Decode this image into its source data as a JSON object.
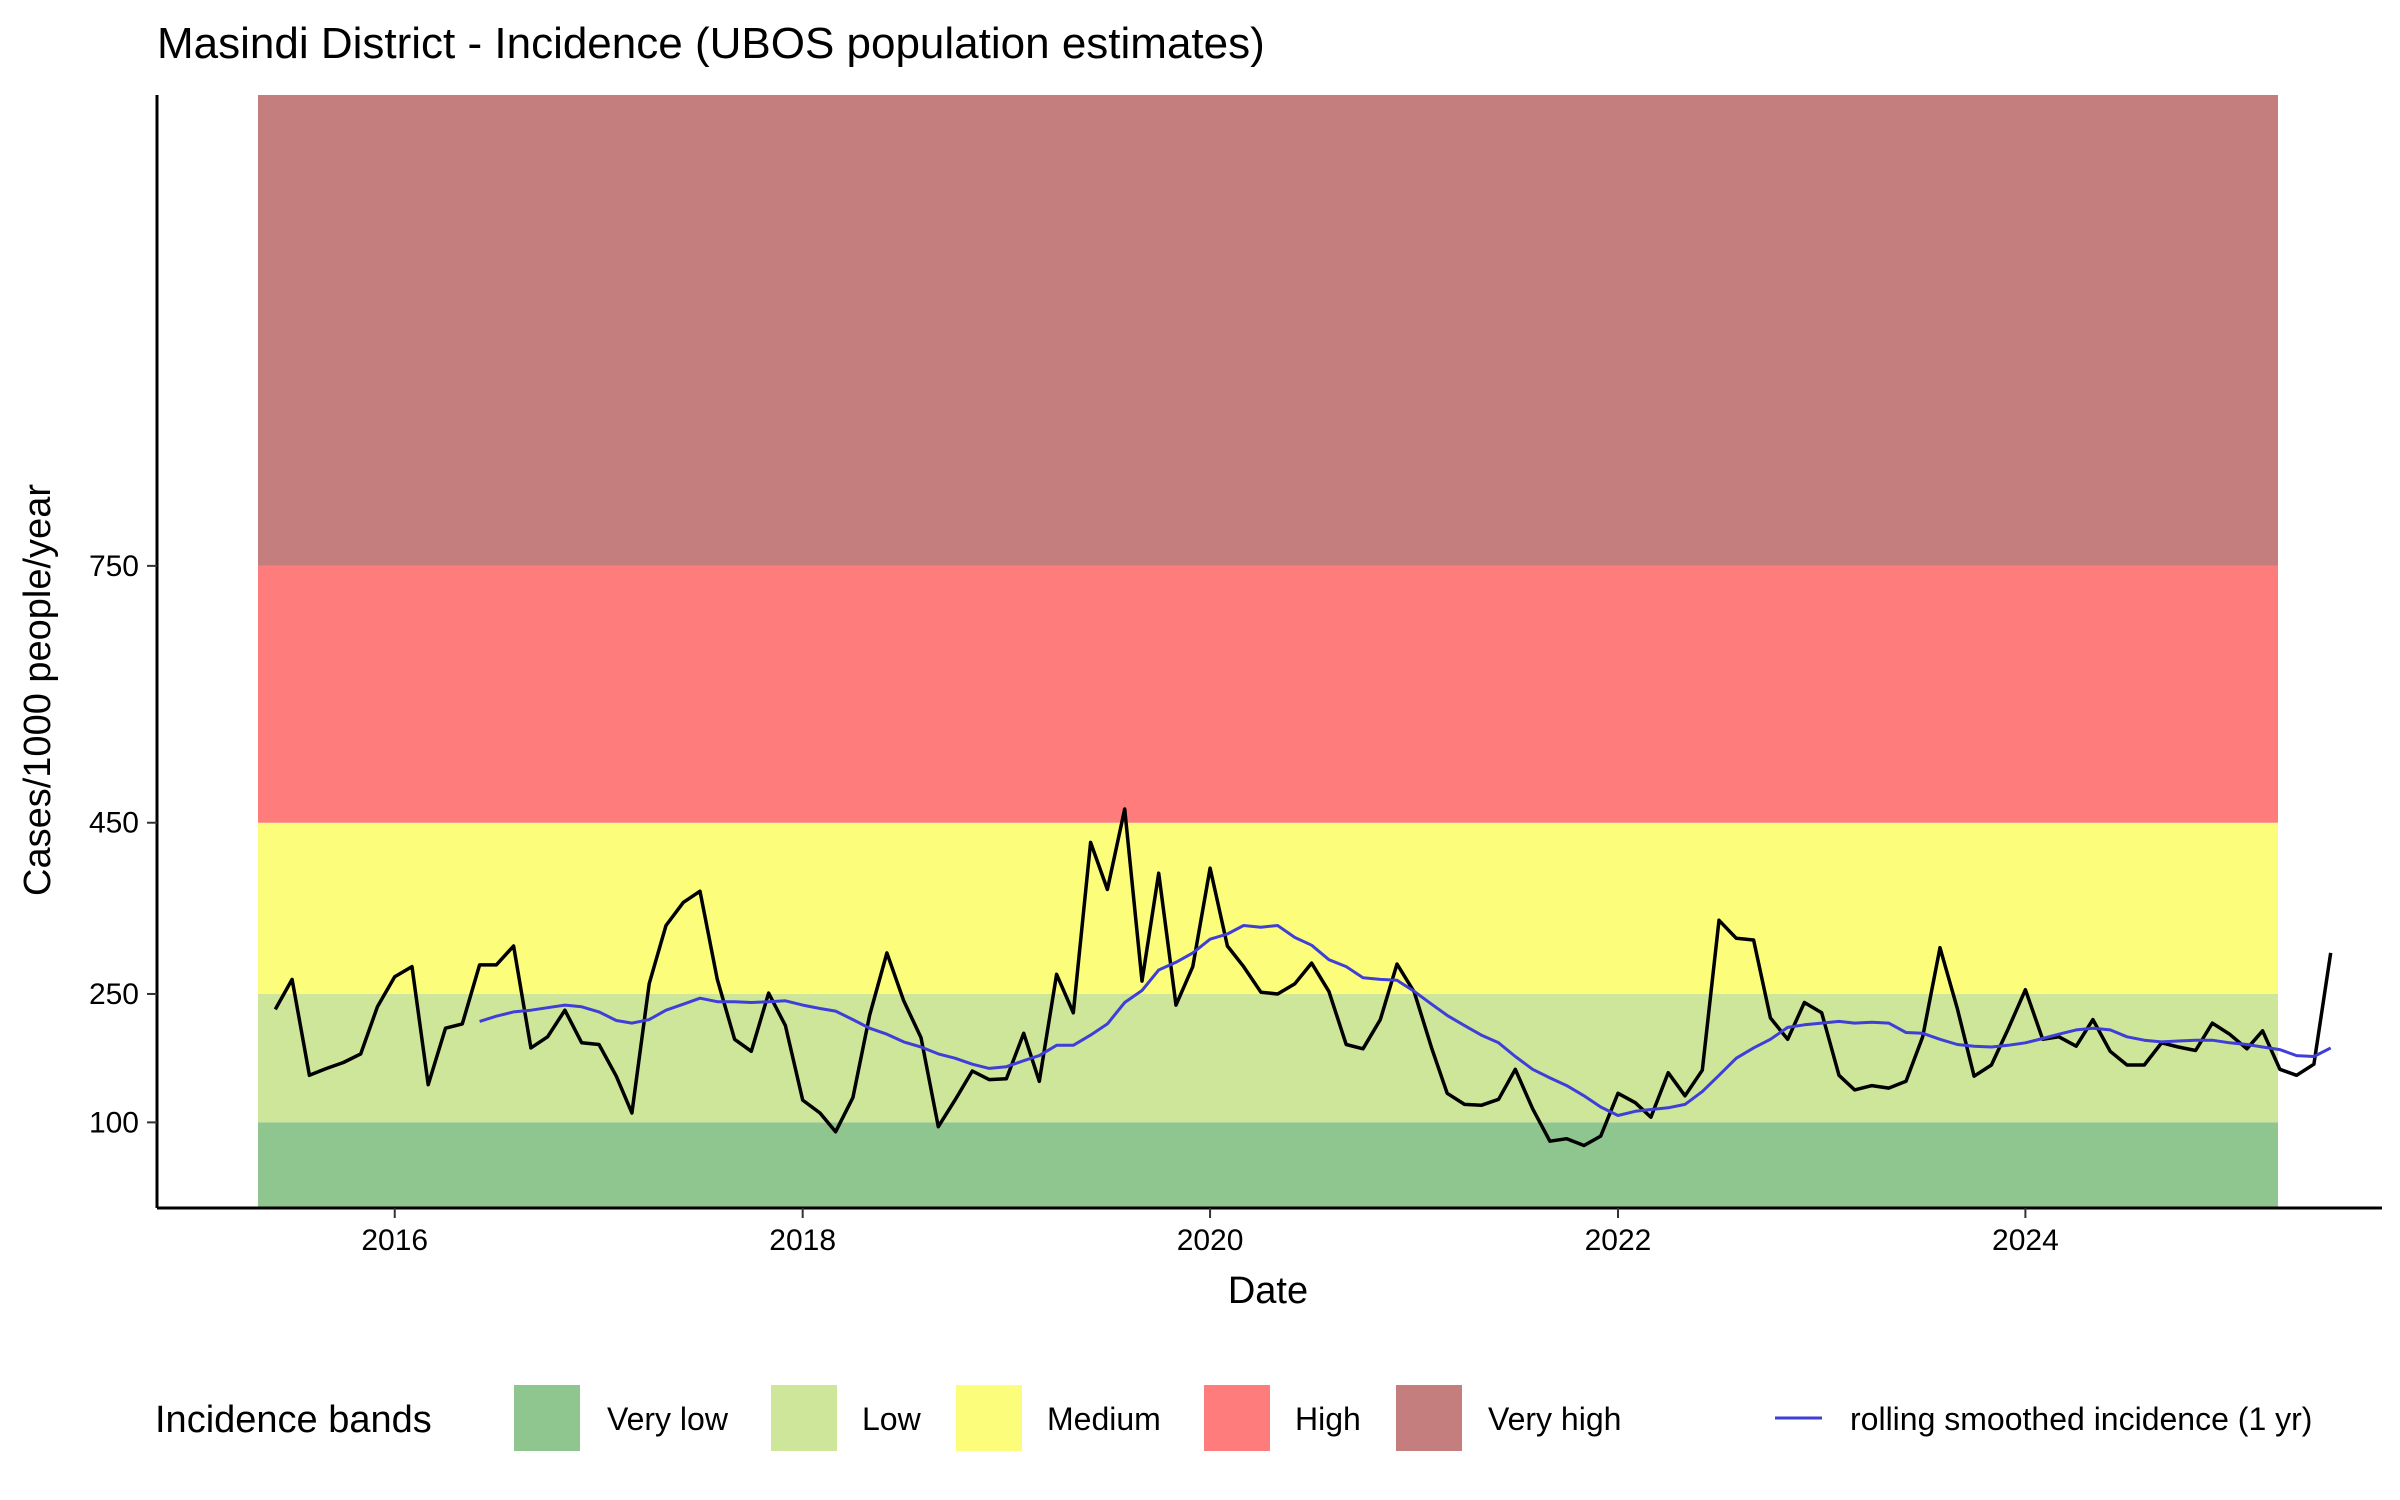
{
  "chart_data": {
    "type": "line",
    "title": "Masindi District - Incidence (UBOS population estimates)",
    "xlabel": "Date",
    "ylabel": "Cases/1000 people/year",
    "x_ticks": [
      "2016",
      "2018",
      "2020",
      "2022",
      "2024"
    ],
    "x_range": [
      "2014-11-01",
      "2025-10-01"
    ],
    "y_ticks": [
      100,
      250,
      450,
      750
    ],
    "y_range": [
      0,
      1300
    ],
    "grid": false,
    "legend_position": "bottom",
    "bands_title": "Incidence bands",
    "bands": [
      {
        "name": "Very low",
        "from": 0,
        "to": 100,
        "color": "#8fc58f"
      },
      {
        "name": "Low",
        "from": 100,
        "to": 250,
        "color": "#cde69a"
      },
      {
        "name": "Medium",
        "from": 250,
        "to": 450,
        "color": "#fdfd7c"
      },
      {
        "name": "High",
        "from": 450,
        "to": 750,
        "color": "#ff7c7c"
      },
      {
        "name": "Very high",
        "from": 750,
        "to": 1300,
        "color": "#c47e7e"
      }
    ],
    "series": [
      {
        "color": "#000000",
        "points": [
          [
            "2015-06-01",
            232
          ],
          [
            "2015-07-01",
            267
          ],
          [
            "2015-08-01",
            155
          ],
          [
            "2015-09-01",
            163
          ],
          [
            "2015-10-01",
            170
          ],
          [
            "2015-11-01",
            180
          ],
          [
            "2015-12-01",
            235
          ],
          [
            "2016-01-01",
            270
          ],
          [
            "2016-02-01",
            282
          ],
          [
            "2016-03-01",
            144
          ],
          [
            "2016-04-01",
            210
          ],
          [
            "2016-05-01",
            215
          ],
          [
            "2016-06-01",
            284
          ],
          [
            "2016-07-01",
            284
          ],
          [
            "2016-08-01",
            306
          ],
          [
            "2016-09-01",
            187
          ],
          [
            "2016-10-01",
            200
          ],
          [
            "2016-11-01",
            231
          ],
          [
            "2016-12-01",
            193
          ],
          [
            "2016-13-01",
            191
          ],
          [
            "2017-02-01",
            154
          ],
          [
            "2017-03-01",
            111
          ],
          [
            "2017-04-01",
            262
          ],
          [
            "2017-05-01",
            330
          ],
          [
            "2017-06-01",
            357
          ],
          [
            "2017-07-01",
            370
          ],
          [
            "2017-08-01",
            267
          ],
          [
            "2017-09-01",
            197
          ],
          [
            "2017-10-01",
            183
          ],
          [
            "2017-11-01",
            251
          ],
          [
            "2017-12-01",
            213
          ],
          [
            "2018-01-01",
            126
          ],
          [
            "2018-02-01",
            111
          ],
          [
            "2018-03-01",
            89
          ],
          [
            "2018-04-01",
            129
          ],
          [
            "2018-05-01",
            225
          ],
          [
            "2018-06-01",
            298
          ],
          [
            "2018-07-01",
            242
          ],
          [
            "2018-08-01",
            199
          ],
          [
            "2018-09-01",
            95
          ],
          [
            "2018-10-01",
            126
          ],
          [
            "2018-11-01",
            160
          ],
          [
            "2018-12-01",
            150
          ],
          [
            "2019-01-01",
            151
          ],
          [
            "2019-02-01",
            204
          ],
          [
            "2019-03-01",
            148
          ],
          [
            "2019-04-01",
            273
          ],
          [
            "2019-05-01",
            228
          ],
          [
            "2019-06-01",
            427
          ],
          [
            "2019-07-01",
            372
          ],
          [
            "2019-08-01",
            466
          ],
          [
            "2019-09-01",
            265
          ],
          [
            "2019-10-01",
            391
          ],
          [
            "2019-11-01",
            237
          ],
          [
            "2019-12-01",
            282
          ],
          [
            "2020-01-01",
            397
          ],
          [
            "2020-02-01",
            306
          ],
          [
            "2020-03-01",
            282
          ],
          [
            "2020-04-01",
            252
          ],
          [
            "2020-05-01",
            250
          ],
          [
            "2020-06-01",
            262
          ],
          [
            "2020-07-01",
            286
          ],
          [
            "2020-08-01",
            253
          ],
          [
            "2020-09-01",
            191
          ],
          [
            "2020-10-01",
            186
          ],
          [
            "2020-11-01",
            220
          ],
          [
            "2020-12-01",
            285
          ],
          [
            "2021-01-01",
            252
          ],
          [
            "2021-02-01",
            187
          ],
          [
            "2021-03-01",
            134
          ],
          [
            "2021-04-01",
            121
          ],
          [
            "2021-05-01",
            120
          ],
          [
            "2021-06-01",
            127
          ],
          [
            "2021-07-01",
            162
          ],
          [
            "2021-08-01",
            116
          ],
          [
            "2021-09-01",
            78
          ],
          [
            "2021-10-01",
            81
          ],
          [
            "2021-11-01",
            73
          ],
          [
            "2021-12-01",
            84
          ],
          [
            "2022-01-01",
            134
          ],
          [
            "2022-02-01",
            123
          ],
          [
            "2022-03-01",
            106
          ],
          [
            "2022-04-01",
            158
          ],
          [
            "2022-05-01",
            131
          ],
          [
            "2022-06-01",
            161
          ],
          [
            "2022-07-01",
            336
          ],
          [
            "2022-08-01",
            315
          ],
          [
            "2022-09-01",
            313
          ],
          [
            "2022-10-01",
            222
          ],
          [
            "2022-11-01",
            197
          ],
          [
            "2022-12-01",
            240
          ],
          [
            "2023-01-01",
            228
          ],
          [
            "2023-02-01",
            155
          ],
          [
            "2023-03-01",
            138
          ],
          [
            "2023-04-01",
            143
          ],
          [
            "2023-05-01",
            140
          ],
          [
            "2023-06-01",
            148
          ],
          [
            "2023-07-01",
            200
          ],
          [
            "2023-08-01",
            304
          ],
          [
            "2023-09-01",
            233
          ],
          [
            "2023-10-01",
            154
          ],
          [
            "2023-11-01",
            167
          ],
          [
            "2023-12-01",
            209
          ],
          [
            "2024-01-01",
            255
          ],
          [
            "2024-02-01",
            197
          ],
          [
            "2024-03-01",
            200
          ],
          [
            "2024-04-01",
            189
          ],
          [
            "2024-05-01",
            220
          ],
          [
            "2024-06-01",
            183
          ],
          [
            "2024-07-01",
            167
          ],
          [
            "2024-08-01",
            167
          ],
          [
            "2024-09-01",
            193
          ],
          [
            "2024-10-01",
            188
          ],
          [
            "2024-11-01",
            184
          ],
          [
            "2024-12-01",
            216
          ],
          [
            "2025-01-01",
            203
          ],
          [
            "2025-02-01",
            186
          ],
          [
            "2025-03-01",
            207
          ],
          [
            "2025-04-01",
            162
          ],
          [
            "2025-05-01",
            155
          ],
          [
            "2025-06-01",
            168
          ],
          [
            "2025-07-01",
            298
          ]
        ]
      },
      {
        "name": "rolling smoothed incidence (1 yr)",
        "color": "#3f3fd8",
        "points": [
          [
            "2016-06-01",
            218
          ],
          [
            "2016-07-01",
            224
          ],
          [
            "2016-08-01",
            229
          ],
          [
            "2016-09-01",
            231
          ],
          [
            "2016-10-01",
            234
          ],
          [
            "2016-11-01",
            237
          ],
          [
            "2016-12-01",
            235
          ],
          [
            "2017-01-01",
            229
          ],
          [
            "2017-02-01",
            219
          ],
          [
            "2017-03-01",
            216
          ],
          [
            "2017-04-01",
            220
          ],
          [
            "2017-05-01",
            231
          ],
          [
            "2017-06-01",
            238
          ],
          [
            "2017-07-01",
            245
          ],
          [
            "2017-08-01",
            241
          ],
          [
            "2017-09-01",
            241
          ],
          [
            "2017-10-01",
            240
          ],
          [
            "2017-11-01",
            241
          ],
          [
            "2017-12-01",
            242
          ],
          [
            "2018-01-01",
            237
          ],
          [
            "2018-02-01",
            233
          ],
          [
            "2018-03-01",
            230
          ],
          [
            "2018-04-01",
            220
          ],
          [
            "2018-05-01",
            210
          ],
          [
            "2018-06-01",
            203
          ],
          [
            "2018-07-01",
            194
          ],
          [
            "2018-08-01",
            188
          ],
          [
            "2018-09-01",
            180
          ],
          [
            "2018-10-01",
            175
          ],
          [
            "2018-11-01",
            168
          ],
          [
            "2018-12-01",
            163
          ],
          [
            "2019-01-01",
            165
          ],
          [
            "2019-02-01",
            172
          ],
          [
            "2019-03-01",
            178
          ],
          [
            "2019-04-01",
            190
          ],
          [
            "2019-05-01",
            190
          ],
          [
            "2019-06-01",
            202
          ],
          [
            "2019-07-01",
            215
          ],
          [
            "2019-08-01",
            240
          ],
          [
            "2019-09-01",
            254
          ],
          [
            "2019-10-01",
            278
          ],
          [
            "2019-11-01",
            287
          ],
          [
            "2019-12-01",
            298
          ],
          [
            "2020-01-01",
            314
          ],
          [
            "2020-02-01",
            320
          ],
          [
            "2020-03-01",
            330
          ],
          [
            "2020-04-01",
            328
          ],
          [
            "2020-05-01",
            330
          ],
          [
            "2020-06-01",
            316
          ],
          [
            "2020-07-01",
            307
          ],
          [
            "2020-08-01",
            290
          ],
          [
            "2020-09-01",
            282
          ],
          [
            "2020-10-01",
            269
          ],
          [
            "2020-11-01",
            267
          ],
          [
            "2020-12-01",
            266
          ],
          [
            "2021-01-01",
            253
          ],
          [
            "2021-02-01",
            238
          ],
          [
            "2021-03-01",
            225
          ],
          [
            "2021-04-01",
            213
          ],
          [
            "2021-05-01",
            202
          ],
          [
            "2021-06-01",
            193
          ],
          [
            "2021-07-01",
            177
          ],
          [
            "2021-08-01",
            162
          ],
          [
            "2021-09-01",
            152
          ],
          [
            "2021-10-01",
            143
          ],
          [
            "2021-11-01",
            131
          ],
          [
            "2021-12-01",
            118
          ],
          [
            "2022-01-01",
            108
          ],
          [
            "2022-02-01",
            113
          ],
          [
            "2022-03-01",
            115
          ],
          [
            "2022-04-01",
            117
          ],
          [
            "2022-05-01",
            121
          ],
          [
            "2022-06-01",
            136
          ],
          [
            "2022-07-01",
            155
          ],
          [
            "2022-08-01",
            175
          ],
          [
            "2022-09-01",
            187
          ],
          [
            "2022-10-01",
            197
          ],
          [
            "2022-11-01",
            211
          ],
          [
            "2022-12-01",
            214
          ],
          [
            "2023-01-01",
            216
          ],
          [
            "2023-02-01",
            218
          ],
          [
            "2023-03-01",
            216
          ],
          [
            "2023-04-01",
            217
          ],
          [
            "2023-05-01",
            216
          ],
          [
            "2023-06-01",
            205
          ],
          [
            "2023-07-01",
            204
          ],
          [
            "2023-08-01",
            197
          ],
          [
            "2023-09-01",
            191
          ],
          [
            "2023-10-01",
            189
          ],
          [
            "2023-11-01",
            188
          ],
          [
            "2023-12-01",
            190
          ],
          [
            "2024-01-01",
            193
          ],
          [
            "2024-02-01",
            198
          ],
          [
            "2024-03-01",
            203
          ],
          [
            "2024-04-01",
            208
          ],
          [
            "2024-05-01",
            210
          ],
          [
            "2024-06-01",
            208
          ],
          [
            "2024-07-01",
            200
          ],
          [
            "2024-08-01",
            196
          ],
          [
            "2024-09-01",
            194
          ],
          [
            "2024-10-01",
            195
          ],
          [
            "2024-11-01",
            196
          ],
          [
            "2024-12-01",
            196
          ],
          [
            "2025-01-01",
            193
          ],
          [
            "2025-02-01",
            191
          ],
          [
            "2025-03-01",
            188
          ],
          [
            "2025-04-01",
            185
          ],
          [
            "2025-05-01",
            178
          ],
          [
            "2025-06-01",
            177
          ],
          [
            "2025-07-01",
            187
          ]
        ]
      }
    ]
  }
}
